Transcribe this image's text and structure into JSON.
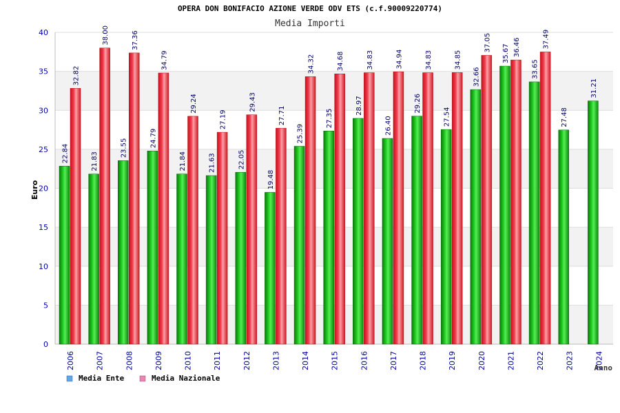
{
  "chart_data": {
    "type": "bar",
    "title": "OPERA DON BONIFACIO AZIONE VERDE ODV ETS (c.f.90009220774)",
    "subtitle": "Media Importi",
    "xlabel": "Anno",
    "ylabel": "Euro",
    "ylim": [
      0,
      40
    ],
    "yticks": [
      "0",
      "5",
      "10",
      "15",
      "20",
      "25",
      "30",
      "35",
      "40"
    ],
    "grid": true,
    "legend_position": "bottom-left",
    "categories": [
      "2006",
      "2007",
      "2008",
      "2009",
      "2010",
      "2011",
      "2012",
      "2013",
      "2014",
      "2015",
      "2016",
      "2017",
      "2018",
      "2019",
      "2020",
      "2021",
      "2022",
      "2023",
      "2024"
    ],
    "series": [
      {
        "name": "Media Ente",
        "legend_color": "#5fa8e8",
        "bar_color": "#11aa11",
        "values": [
          22.84,
          21.83,
          23.55,
          24.79,
          21.84,
          21.63,
          22.05,
          19.48,
          25.39,
          27.35,
          28.97,
          26.4,
          29.26,
          27.54,
          32.66,
          35.67,
          33.65,
          27.48,
          31.21
        ],
        "labels": [
          "22.84",
          "21.83",
          "23.55",
          "24.79",
          "21.84",
          "21.63",
          "22.05",
          "19.48",
          "25.39",
          "27.35",
          "28.97",
          "26.40",
          "29.26",
          "27.54",
          "32.66",
          "35.67",
          "33.65",
          "27.48",
          "31.21"
        ]
      },
      {
        "name": "Media Nazionale",
        "legend_color": "#e888b0",
        "bar_color": "#e8202c",
        "values": [
          32.82,
          38.0,
          37.36,
          34.79,
          29.24,
          27.19,
          29.43,
          27.71,
          34.32,
          34.68,
          34.83,
          34.94,
          34.83,
          34.85,
          37.05,
          36.46,
          37.49,
          null,
          null
        ],
        "labels": [
          "32.82",
          "38.00",
          "37.36",
          "34.79",
          "29.24",
          "27.19",
          "29.43",
          "27.71",
          "34.32",
          "34.68",
          "34.83",
          "34.94",
          "34.83",
          "34.85",
          "37.05",
          "36.46",
          "37.49",
          null,
          null
        ]
      }
    ]
  }
}
